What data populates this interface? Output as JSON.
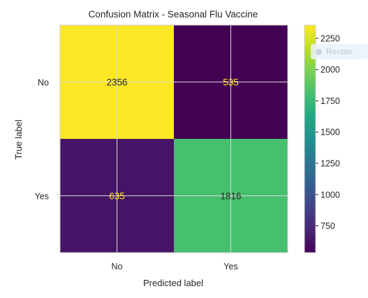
{
  "chart_data": {
    "type": "heatmap",
    "title": "Confusion Matrix - Seasonal Flu Vaccine",
    "xlabel": "Predicted label",
    "ylabel": "True label",
    "x_categories": [
      "No",
      "Yes"
    ],
    "y_categories": [
      "No",
      "Yes"
    ],
    "values": [
      [
        2356,
        535
      ],
      [
        635,
        1816
      ]
    ],
    "colormap": "viridis",
    "colorbar": {
      "ticks": [
        750,
        1000,
        1250,
        1500,
        1750,
        2000,
        2250
      ],
      "range": [
        535,
        2356
      ]
    },
    "grid": true
  },
  "overlay": {
    "label": "Rectan"
  }
}
